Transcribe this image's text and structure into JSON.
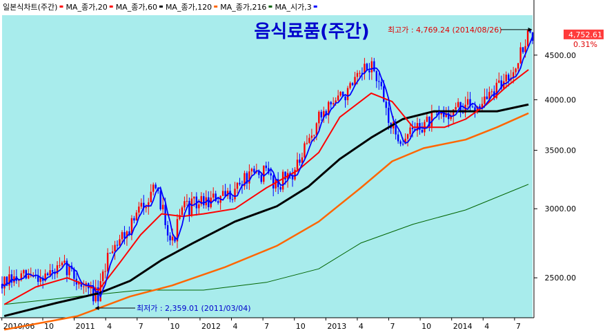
{
  "chart_data": {
    "type": "candlestick",
    "title": "음식료품(주간)",
    "legend": [
      {
        "label": "일본식차트(주간)",
        "color": "#ff0000"
      },
      {
        "label": "MA_종가,20",
        "color": "#ff0000"
      },
      {
        "label": "MA_종가,60",
        "color": "#000000"
      },
      {
        "label": "MA_종가,120",
        "color": "#ff6600"
      },
      {
        "label": "MA_종가,216",
        "color": "#006400"
      },
      {
        "label": "MA_시가,3",
        "color": "#0000ff"
      }
    ],
    "legend_position": "top-left",
    "y_scale": "log",
    "ylim": [
      2250,
      5000
    ],
    "y_ticks": [
      2500,
      3000,
      3500,
      4000,
      4500
    ],
    "y_tick_labels": [
      "2500.00",
      "3000.00",
      "3500.00",
      "4000.00",
      "4500.00"
    ],
    "x_tick_labels": [
      "2010/06",
      "10",
      "2011",
      "4",
      "7",
      "10",
      "2012",
      "4",
      "7",
      "10",
      "2013",
      "4",
      "7",
      "10",
      "2014",
      "4",
      "7"
    ],
    "grid": false,
    "last_value": {
      "value": 4752.61,
      "label": "4,752.61",
      "change_label": "0.31%"
    },
    "annotations": [
      {
        "text": "최고가 : 4,769.24 (2014/08/26)",
        "date": "2014/08/26",
        "value": 4769.24,
        "color": "#e00000"
      },
      {
        "text": "최저가 : 2,359.01 (2011/03/04)",
        "date": "2011/03/04",
        "value": 2359.01,
        "color": "#0000cc"
      }
    ],
    "close_series": [
      {
        "date": "2010/06",
        "value": 2460
      },
      {
        "date": "2010/08",
        "value": 2500
      },
      {
        "date": "2010/10",
        "value": 2520
      },
      {
        "date": "2010/12",
        "value": 2570
      },
      {
        "date": "2011/01",
        "value": 2480
      },
      {
        "date": "2011/03",
        "value": 2370
      },
      {
        "date": "2011/04",
        "value": 2700
      },
      {
        "date": "2011/06",
        "value": 2860
      },
      {
        "date": "2011/08",
        "value": 3150
      },
      {
        "date": "2011/09",
        "value": 3050
      },
      {
        "date": "2011/10",
        "value": 2730
      },
      {
        "date": "2011/11",
        "value": 3000
      },
      {
        "date": "2012/01",
        "value": 3060
      },
      {
        "date": "2012/03",
        "value": 3080
      },
      {
        "date": "2012/05",
        "value": 3250
      },
      {
        "date": "2012/07",
        "value": 3300
      },
      {
        "date": "2012/08",
        "value": 3200
      },
      {
        "date": "2012/10",
        "value": 3350
      },
      {
        "date": "2012/12",
        "value": 3800
      },
      {
        "date": "2013/01",
        "value": 3950
      },
      {
        "date": "2013/03",
        "value": 4100
      },
      {
        "date": "2013/05",
        "value": 4400
      },
      {
        "date": "2013/06",
        "value": 4050
      },
      {
        "date": "2013/07",
        "value": 3700
      },
      {
        "date": "2013/08",
        "value": 3600
      },
      {
        "date": "2013/09",
        "value": 3700
      },
      {
        "date": "2013/11",
        "value": 3800
      },
      {
        "date": "2014/01",
        "value": 3900
      },
      {
        "date": "2014/03",
        "value": 3950
      },
      {
        "date": "2014/05",
        "value": 4100
      },
      {
        "date": "2014/07",
        "value": 4450
      },
      {
        "date": "2014/08",
        "value": 4752.61
      }
    ],
    "ma20": [
      {
        "date": "2010/06",
        "value": 2330
      },
      {
        "date": "2010/09",
        "value": 2440
      },
      {
        "date": "2010/12",
        "value": 2500
      },
      {
        "date": "2011/03",
        "value": 2420
      },
      {
        "date": "2011/05",
        "value": 2600
      },
      {
        "date": "2011/07",
        "value": 2800
      },
      {
        "date": "2011/09",
        "value": 2960
      },
      {
        "date": "2011/11",
        "value": 2940
      },
      {
        "date": "2012/01",
        "value": 2960
      },
      {
        "date": "2012/04",
        "value": 3000
      },
      {
        "date": "2012/07",
        "value": 3170
      },
      {
        "date": "2012/10",
        "value": 3320
      },
      {
        "date": "2012/12",
        "value": 3480
      },
      {
        "date": "2013/02",
        "value": 3820
      },
      {
        "date": "2013/05",
        "value": 4070
      },
      {
        "date": "2013/07",
        "value": 3980
      },
      {
        "date": "2013/09",
        "value": 3720
      },
      {
        "date": "2013/12",
        "value": 3720
      },
      {
        "date": "2014/02",
        "value": 3800
      },
      {
        "date": "2014/04",
        "value": 3950
      },
      {
        "date": "2014/06",
        "value": 4150
      },
      {
        "date": "2014/08",
        "value": 4330
      }
    ],
    "ma60": [
      {
        "date": "2010/06",
        "value": 2260
      },
      {
        "date": "2010/11",
        "value": 2340
      },
      {
        "date": "2011/03",
        "value": 2400
      },
      {
        "date": "2011/06",
        "value": 2480
      },
      {
        "date": "2011/09",
        "value": 2620
      },
      {
        "date": "2011/12",
        "value": 2740
      },
      {
        "date": "2012/04",
        "value": 2900
      },
      {
        "date": "2012/08",
        "value": 3020
      },
      {
        "date": "2012/11",
        "value": 3180
      },
      {
        "date": "2013/02",
        "value": 3420
      },
      {
        "date": "2013/05",
        "value": 3620
      },
      {
        "date": "2013/08",
        "value": 3800
      },
      {
        "date": "2013/11",
        "value": 3880
      },
      {
        "date": "2014/02",
        "value": 3880
      },
      {
        "date": "2014/05",
        "value": 3880
      },
      {
        "date": "2014/08",
        "value": 3950
      }
    ],
    "ma120": [
      {
        "date": "2010/06",
        "value": 2180
      },
      {
        "date": "2011/01",
        "value": 2260
      },
      {
        "date": "2011/06",
        "value": 2380
      },
      {
        "date": "2011/10",
        "value": 2450
      },
      {
        "date": "2012/03",
        "value": 2570
      },
      {
        "date": "2012/08",
        "value": 2720
      },
      {
        "date": "2012/12",
        "value": 2900
      },
      {
        "date": "2013/04",
        "value": 3170
      },
      {
        "date": "2013/07",
        "value": 3400
      },
      {
        "date": "2013/10",
        "value": 3520
      },
      {
        "date": "2014/02",
        "value": 3600
      },
      {
        "date": "2014/05",
        "value": 3720
      },
      {
        "date": "2014/08",
        "value": 3860
      }
    ],
    "ma216": [
      {
        "date": "2010/06",
        "value": 2330
      },
      {
        "date": "2011/01",
        "value": 2380
      },
      {
        "date": "2011/07",
        "value": 2420
      },
      {
        "date": "2012/01",
        "value": 2420
      },
      {
        "date": "2012/07",
        "value": 2470
      },
      {
        "date": "2012/12",
        "value": 2560
      },
      {
        "date": "2013/04",
        "value": 2740
      },
      {
        "date": "2013/09",
        "value": 2880
      },
      {
        "date": "2014/02",
        "value": 2990
      },
      {
        "date": "2014/08",
        "value": 3200
      }
    ]
  }
}
